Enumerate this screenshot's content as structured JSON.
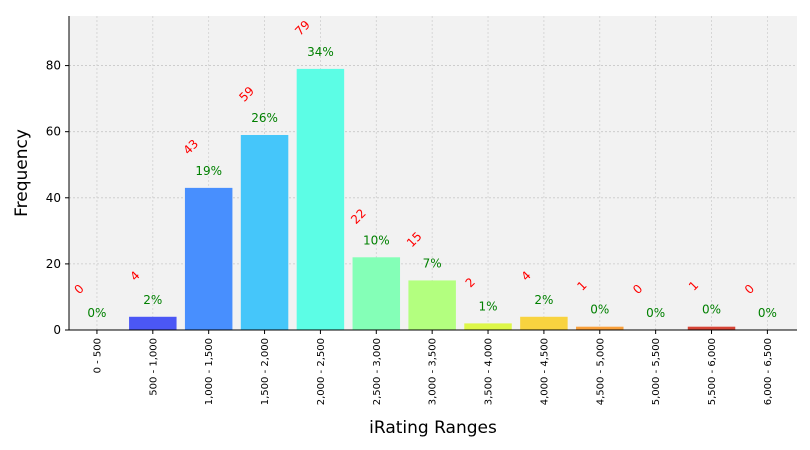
{
  "chart_data": {
    "type": "bar",
    "title": "",
    "xlabel": "iRating Ranges",
    "ylabel": "Frequency",
    "ylim": [
      0,
      95
    ],
    "yticks": [
      0,
      20,
      40,
      60,
      80
    ],
    "grid": true,
    "categories": [
      "0 - 500",
      "500 - 1,000",
      "1,000 - 1,500",
      "1,500 - 2,000",
      "2,000 - 2,500",
      "2,500 - 3,000",
      "3,000 - 3,500",
      "3,500 - 4,000",
      "4,000 - 4,500",
      "4,500 - 5,000",
      "5,000 - 5,500",
      "5,500 - 6,000",
      "6,000 - 6,500"
    ],
    "values": [
      0,
      4,
      43,
      59,
      79,
      22,
      15,
      2,
      4,
      1,
      0,
      1,
      0
    ],
    "count_labels": [
      "0",
      "4",
      "43",
      "59",
      "79",
      "22",
      "15",
      "2",
      "4",
      "1",
      "0",
      "1",
      "0"
    ],
    "percent_labels": [
      "0%",
      "2%",
      "19%",
      "26%",
      "34%",
      "10%",
      "7%",
      "1%",
      "2%",
      "0%",
      "0%",
      "0%",
      "0%"
    ],
    "bar_colors": [
      "#3a00ff",
      "#4b57f5",
      "#488ffe",
      "#45c6fa",
      "#5cfde5",
      "#84ffb7",
      "#b3ff7f",
      "#ddf748",
      "#f8d33f",
      "#f9a03b",
      "#fc6a30",
      "#d64436",
      "#b11e1e"
    ],
    "count_label_color": "#ff0000",
    "percent_label_color": "#008000",
    "plot_background": "#f2f2f2"
  }
}
